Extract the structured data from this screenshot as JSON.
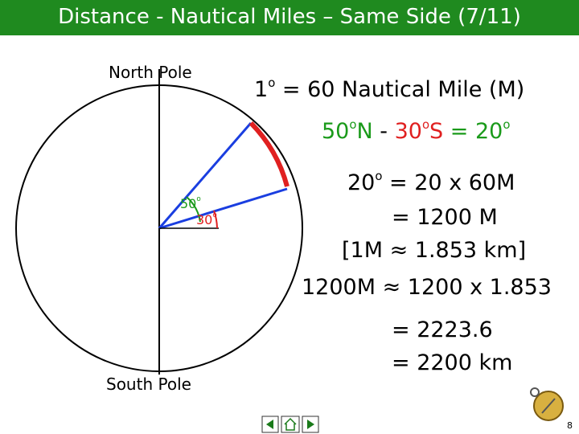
{
  "header": {
    "title": "Distance - Nautical Miles – Same Side (7/11)"
  },
  "diagram": {
    "north_label": "North Pole",
    "south_label": "South Pole",
    "angle_1": {
      "number": "50",
      "degree": "o"
    },
    "angle_2": {
      "number": "30",
      "degree": "o"
    }
  },
  "definition": {
    "number": "1",
    "degree": "o",
    "rest": "= 60 Nautical Mile (M)"
  },
  "difference": {
    "north": {
      "number": "50",
      "degree": "o",
      "letter": "N"
    },
    "minus": "-",
    "south": {
      "number": "30",
      "degree": "o",
      "letter": "S"
    },
    "result": {
      "equals": "=",
      "number": "20",
      "degree": "o"
    }
  },
  "working": {
    "line_1": {
      "number": "20",
      "degree": "o",
      "rest": "= 20 x 60M"
    },
    "line_2": "= 1200 M",
    "line_3": "[1M ≈ 1.853 km]",
    "line_4": "1200M ≈ 1200 x 1.853",
    "line_5": "= 2223.6",
    "line_6": "= 2200 km"
  },
  "footer": {
    "page_number": "8"
  }
}
